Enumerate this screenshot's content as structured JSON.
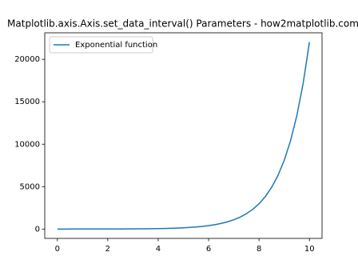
{
  "chart_data": {
    "type": "line",
    "title": "Matplotlib.axis.Axis.set_data_interval() Parameters - how2matplotlib.com",
    "x": [
      0,
      0.25,
      0.5,
      0.75,
      1,
      1.25,
      1.5,
      1.75,
      2,
      2.25,
      2.5,
      2.75,
      3,
      3.25,
      3.5,
      3.75,
      4,
      4.25,
      4.5,
      4.75,
      5,
      5.25,
      5.5,
      5.75,
      6,
      6.25,
      6.5,
      6.75,
      7,
      7.25,
      7.5,
      7.75,
      8,
      8.25,
      8.5,
      8.75,
      9,
      9.25,
      9.5,
      9.75,
      10
    ],
    "series": [
      {
        "name": "Exponential function",
        "color": "#1f77b4",
        "values": [
          1,
          1.28,
          1.65,
          2.12,
          2.72,
          3.49,
          4.48,
          5.75,
          7.39,
          9.49,
          12.18,
          15.64,
          20.09,
          25.79,
          33.12,
          42.52,
          54.6,
          70.11,
          90.02,
          115.6,
          148.4,
          190.6,
          244.7,
          314.2,
          403.4,
          518,
          665.1,
          854.1,
          1096.6,
          1408.1,
          1808,
          2321.6,
          2981,
          3827.6,
          4914.8,
          6310.7,
          8103.1,
          10404.6,
          13359.7,
          17154.2,
          22026.5
        ]
      }
    ],
    "xlim": [
      -0.5,
      10.5
    ],
    "xticks": [
      0,
      2,
      4,
      6,
      8,
      10
    ],
    "ylim": [
      -1100,
      23127
    ],
    "yticks": [
      0,
      5000,
      10000,
      15000,
      20000
    ],
    "legend": "upper left"
  }
}
